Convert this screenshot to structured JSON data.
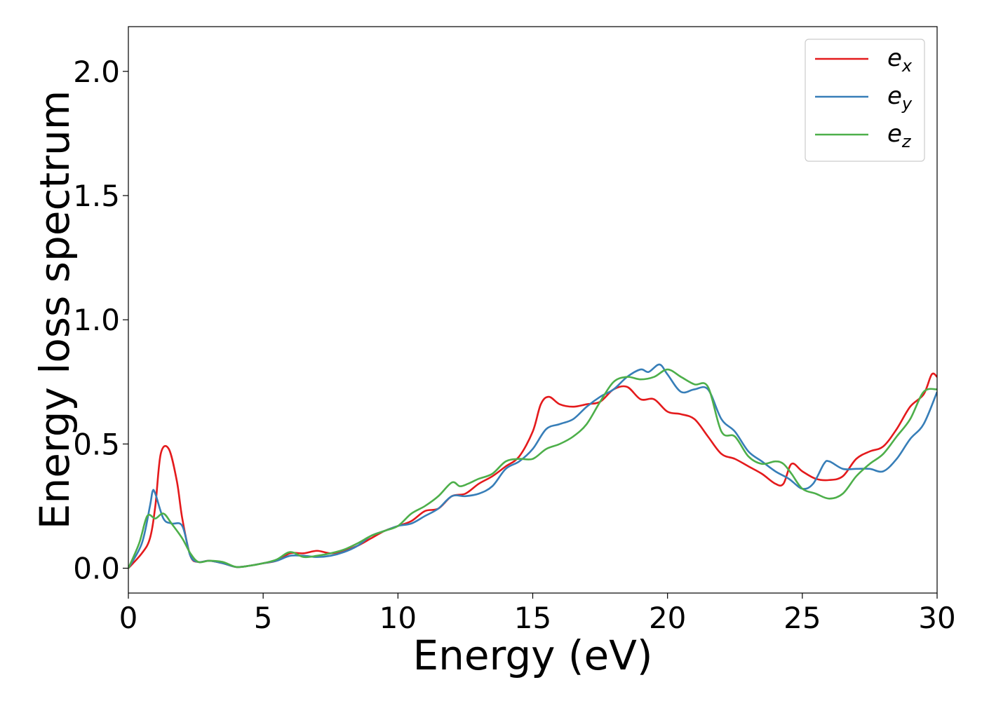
{
  "chart_data": {
    "type": "line",
    "title": "",
    "xlabel": "Energy (eV)",
    "ylabel": "Energy loss spectrum",
    "xlim": [
      0,
      30
    ],
    "ylim": [
      -0.1,
      2.18
    ],
    "xticks": [
      0,
      5,
      10,
      15,
      20,
      25,
      30
    ],
    "xtick_labels": [
      "0",
      "5",
      "10",
      "15",
      "20",
      "25",
      "30"
    ],
    "yticks": [
      0.0,
      0.5,
      1.0,
      1.5,
      2.0
    ],
    "ytick_labels": [
      "0.0",
      "0.5",
      "1.0",
      "1.5",
      "2.0"
    ],
    "grid": false,
    "legend_position": "top-right",
    "series": [
      {
        "name": "e_x",
        "label_base": "e",
        "label_sub": "x",
        "color": "#e41a1c",
        "x": [
          0,
          0.5,
          0.8,
          1.0,
          1.2,
          1.5,
          1.8,
          2.0,
          2.3,
          2.6,
          3.0,
          3.5,
          4.0,
          4.5,
          5.0,
          5.5,
          6.0,
          6.5,
          7.0,
          7.5,
          8.0,
          8.5,
          9.0,
          9.5,
          10.0,
          10.5,
          11.0,
          11.5,
          12.0,
          12.5,
          13.0,
          13.5,
          14.0,
          14.5,
          15.0,
          15.3,
          15.6,
          16.0,
          16.5,
          17.0,
          17.5,
          18.0,
          18.5,
          19.0,
          19.5,
          20.0,
          20.5,
          21.0,
          21.5,
          22.0,
          22.5,
          23.0,
          23.5,
          24.0,
          24.3,
          24.6,
          25.0,
          25.5,
          26.0,
          26.5,
          27.0,
          27.5,
          28.0,
          28.5,
          29.0,
          29.5,
          29.8,
          30.0
        ],
        "y": [
          0.0,
          0.06,
          0.12,
          0.25,
          0.46,
          0.48,
          0.35,
          0.2,
          0.05,
          0.025,
          0.03,
          0.02,
          0.005,
          0.01,
          0.02,
          0.03,
          0.06,
          0.06,
          0.07,
          0.06,
          0.07,
          0.09,
          0.12,
          0.15,
          0.17,
          0.19,
          0.23,
          0.24,
          0.29,
          0.3,
          0.34,
          0.37,
          0.41,
          0.45,
          0.55,
          0.66,
          0.69,
          0.66,
          0.65,
          0.66,
          0.67,
          0.72,
          0.73,
          0.68,
          0.68,
          0.63,
          0.62,
          0.6,
          0.53,
          0.46,
          0.44,
          0.41,
          0.38,
          0.34,
          0.34,
          0.42,
          0.39,
          0.36,
          0.355,
          0.37,
          0.44,
          0.47,
          0.49,
          0.56,
          0.65,
          0.7,
          0.78,
          0.77
        ]
      },
      {
        "name": "e_y",
        "label_base": "e",
        "label_sub": "y",
        "color": "#377eb8",
        "x": [
          0,
          0.5,
          0.8,
          0.9,
          1.0,
          1.3,
          1.6,
          2.0,
          2.3,
          2.6,
          3.0,
          3.5,
          4.0,
          4.5,
          5.0,
          5.5,
          6.0,
          6.5,
          7.0,
          7.5,
          8.0,
          8.5,
          9.0,
          9.5,
          10.0,
          10.5,
          11.0,
          11.5,
          12.0,
          12.5,
          13.0,
          13.5,
          14.0,
          14.5,
          15.0,
          15.5,
          16.0,
          16.5,
          17.0,
          17.5,
          18.0,
          18.5,
          19.0,
          19.3,
          19.7,
          20.0,
          20.5,
          21.0,
          21.5,
          22.0,
          22.5,
          23.0,
          23.5,
          24.0,
          24.5,
          25.0,
          25.4,
          25.8,
          26.0,
          26.5,
          27.0,
          27.5,
          28.0,
          28.5,
          29.0,
          29.5,
          30.0
        ],
        "y": [
          0.0,
          0.1,
          0.25,
          0.31,
          0.3,
          0.2,
          0.18,
          0.17,
          0.05,
          0.025,
          0.03,
          0.02,
          0.005,
          0.01,
          0.02,
          0.03,
          0.05,
          0.05,
          0.045,
          0.05,
          0.065,
          0.09,
          0.13,
          0.15,
          0.17,
          0.18,
          0.21,
          0.24,
          0.29,
          0.29,
          0.3,
          0.33,
          0.4,
          0.43,
          0.48,
          0.56,
          0.58,
          0.6,
          0.65,
          0.69,
          0.72,
          0.77,
          0.8,
          0.79,
          0.82,
          0.78,
          0.71,
          0.72,
          0.72,
          0.6,
          0.55,
          0.47,
          0.43,
          0.39,
          0.36,
          0.32,
          0.34,
          0.42,
          0.43,
          0.4,
          0.4,
          0.4,
          0.39,
          0.44,
          0.52,
          0.58,
          0.71
        ]
      },
      {
        "name": "e_z",
        "label_base": "e",
        "label_sub": "z",
        "color": "#4daf4a",
        "x": [
          0,
          0.4,
          0.7,
          1.0,
          1.3,
          1.6,
          2.0,
          2.3,
          2.6,
          3.0,
          3.5,
          4.0,
          4.5,
          5.0,
          5.5,
          6.0,
          6.5,
          7.0,
          7.5,
          8.0,
          8.5,
          9.0,
          9.5,
          10.0,
          10.5,
          11.0,
          11.5,
          12.0,
          12.3,
          12.6,
          13.0,
          13.5,
          14.0,
          14.5,
          15.0,
          15.5,
          16.0,
          16.5,
          17.0,
          17.5,
          18.0,
          18.5,
          19.0,
          19.5,
          20.0,
          20.5,
          21.0,
          21.5,
          22.0,
          22.5,
          23.0,
          23.5,
          24.0,
          24.3,
          24.6,
          25.0,
          25.5,
          26.0,
          26.5,
          27.0,
          27.5,
          28.0,
          28.5,
          29.0,
          29.5,
          30.0
        ],
        "y": [
          0.0,
          0.1,
          0.21,
          0.2,
          0.22,
          0.18,
          0.12,
          0.06,
          0.025,
          0.03,
          0.025,
          0.005,
          0.01,
          0.02,
          0.035,
          0.065,
          0.045,
          0.05,
          0.06,
          0.075,
          0.1,
          0.13,
          0.15,
          0.17,
          0.22,
          0.25,
          0.29,
          0.345,
          0.33,
          0.34,
          0.36,
          0.38,
          0.43,
          0.44,
          0.44,
          0.48,
          0.5,
          0.53,
          0.58,
          0.67,
          0.75,
          0.77,
          0.76,
          0.77,
          0.8,
          0.77,
          0.74,
          0.73,
          0.55,
          0.53,
          0.45,
          0.42,
          0.43,
          0.42,
          0.38,
          0.32,
          0.3,
          0.28,
          0.3,
          0.37,
          0.42,
          0.46,
          0.53,
          0.6,
          0.71,
          0.72
        ]
      }
    ]
  }
}
